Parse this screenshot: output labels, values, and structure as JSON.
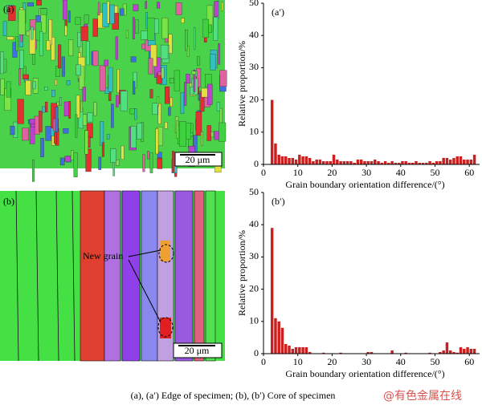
{
  "panels": [
    {
      "label": "(a)",
      "scale": "20 μm"
    },
    {
      "label": "(b)",
      "scale": "20 μm",
      "annotation": "New grain"
    }
  ],
  "caption": "(a), (a′) Edge of specimen;  (b), (b′) Core of specimen",
  "watermark": "@有色金属在线",
  "chart_data": [
    {
      "type": "histogram",
      "title": "(a′)",
      "xlabel": "Grain boundary orientation difference/(°)",
      "ylabel": "Relative proportion/%",
      "color": "#cc1f1f",
      "bins": [
        2,
        3,
        4,
        5,
        6,
        7,
        8,
        9,
        10,
        11,
        12,
        13,
        14,
        15,
        16,
        17,
        18,
        19,
        20,
        21,
        22,
        23,
        24,
        25,
        26,
        27,
        28,
        29,
        30,
        31,
        32,
        33,
        34,
        35,
        36,
        37,
        38,
        39,
        40,
        41,
        42,
        43,
        44,
        45,
        46,
        47,
        48,
        49,
        50,
        51,
        52,
        53,
        54,
        55,
        56,
        57,
        58,
        59,
        60,
        61,
        62
      ],
      "values": [
        20,
        6.5,
        3,
        2.5,
        2.5,
        2,
        2,
        1.5,
        3,
        2.5,
        2.5,
        2,
        1,
        1.5,
        1.5,
        1,
        1,
        1,
        3,
        1.5,
        1,
        1,
        1,
        1,
        0.5,
        1.5,
        1.5,
        1,
        1,
        1,
        1.5,
        1,
        0.5,
        1,
        0.5,
        1,
        0.5,
        0.5,
        1,
        1,
        0.5,
        0.5,
        1,
        0.5,
        0.5,
        0.5,
        1,
        0.5,
        1,
        1,
        2,
        2,
        1.5,
        2,
        2.5,
        2.5,
        1.5,
        1.5,
        1.5,
        3
      ],
      "xlim": [
        0,
        63
      ],
      "xticks": [
        0,
        10,
        20,
        30,
        40,
        50,
        60
      ],
      "ylim": [
        0,
        50
      ],
      "yticks": [
        0,
        10,
        20,
        30,
        40,
        50
      ]
    },
    {
      "type": "histogram",
      "title": "(b′)",
      "xlabel": "Grain boundary orientation difference/(°)",
      "ylabel": "Relative proportion/%",
      "color": "#cc1f1f",
      "bins": [
        2,
        3,
        4,
        5,
        6,
        7,
        8,
        9,
        10,
        11,
        12,
        13,
        14,
        15,
        16,
        17,
        18,
        19,
        20,
        21,
        22,
        23,
        24,
        25,
        26,
        27,
        28,
        29,
        30,
        31,
        32,
        33,
        34,
        35,
        36,
        37,
        38,
        39,
        40,
        41,
        42,
        43,
        44,
        45,
        46,
        47,
        48,
        49,
        50,
        51,
        52,
        53,
        54,
        55,
        56,
        57,
        58,
        59,
        60,
        61,
        62
      ],
      "values": [
        39,
        11,
        10,
        8,
        3,
        2.5,
        1.5,
        2,
        2,
        2,
        2,
        0.5,
        0,
        0,
        0,
        0.3,
        0,
        0,
        0,
        0,
        0.3,
        0,
        0,
        0,
        0,
        0,
        0,
        0,
        0.5,
        0.5,
        0,
        0,
        0,
        0,
        0,
        1,
        0,
        0,
        0,
        0.3,
        0,
        0,
        0,
        0,
        0,
        0,
        0.3,
        0,
        0,
        0.5,
        1,
        3.5,
        1,
        0.5,
        0.3,
        2,
        1.5,
        2,
        1.5,
        1.5
      ],
      "xlim": [
        0,
        63
      ],
      "xticks": [
        0,
        10,
        20,
        30,
        40,
        50,
        60
      ],
      "ylim": [
        0,
        50
      ],
      "yticks": [
        0,
        10,
        20,
        30,
        40,
        50
      ]
    }
  ]
}
